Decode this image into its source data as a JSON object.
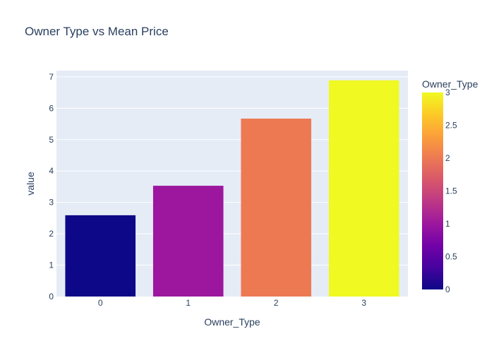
{
  "chart_data": {
    "type": "bar",
    "title": "Owner Type vs Mean Price",
    "xlabel": "Owner_Type",
    "ylabel": "value",
    "categories": [
      "0",
      "1",
      "2",
      "3"
    ],
    "values": [
      2.59,
      3.53,
      5.67,
      6.89
    ],
    "ylim": [
      0,
      7.2
    ],
    "yticks": [
      "0",
      "1",
      "2",
      "3",
      "4",
      "5",
      "6",
      "7"
    ],
    "grid": true,
    "plot_background": "#e5ecf6",
    "colorbar": {
      "title": "Owner_Type",
      "range": [
        0,
        3
      ],
      "ticks": [
        "0",
        "0.5",
        "1",
        "1.5",
        "2",
        "2.5",
        "3"
      ],
      "colorscale": [
        "#0d0887",
        "#46039f",
        "#7201a8",
        "#9c179e",
        "#bd3786",
        "#d8576b",
        "#ed7953",
        "#fb9f3a",
        "#fdca26",
        "#f0f921"
      ]
    }
  }
}
